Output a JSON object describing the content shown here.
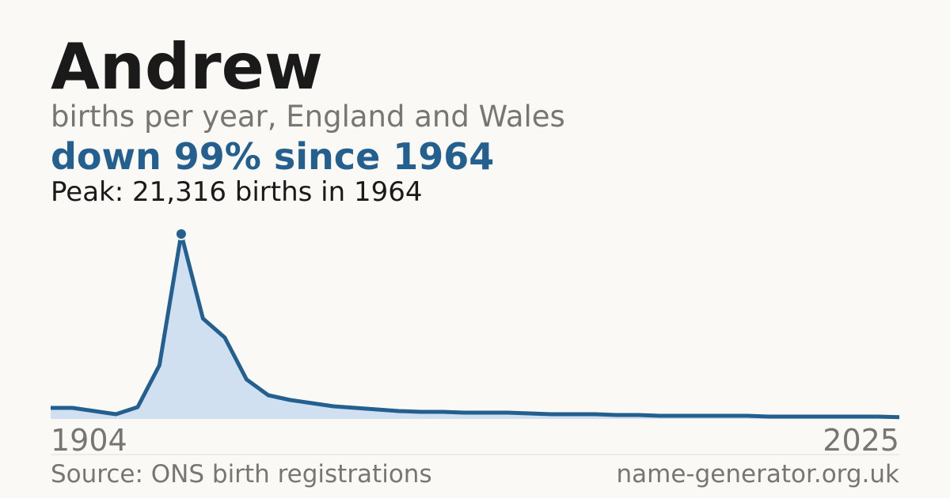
{
  "chart_data": {
    "type": "area",
    "title": "Andrew",
    "subtitle": "births per year, England and Wales",
    "headline": "down 99% since 1964",
    "annotation": "Peak: 21,316 births in 1964",
    "source": "Source: ONS birth registrations",
    "site": "name-generator.org.uk",
    "categories": [
      "1904",
      null,
      null,
      null,
      null,
      null,
      null,
      null,
      null,
      null,
      null,
      null,
      null,
      null,
      null,
      null,
      null,
      null,
      null,
      null,
      null,
      null,
      null,
      null,
      null,
      null,
      null,
      null,
      null,
      null,
      null,
      null,
      null,
      null,
      null,
      null,
      null,
      null,
      null,
      "2025"
    ],
    "values": [
      1275,
      1275,
      911,
      547,
      1367,
      6195,
      21316,
      11570,
      9385,
      4555,
      2733,
      2186,
      1822,
      1458,
      1275,
      1093,
      911,
      820,
      820,
      729,
      729,
      729,
      638,
      547,
      547,
      547,
      456,
      456,
      364,
      364,
      364,
      364,
      364,
      273,
      273,
      273,
      273,
      273,
      273,
      200
    ],
    "ylim": [
      0,
      21316
    ],
    "color": "#23608f",
    "fill_color": "#d0e0f0"
  }
}
